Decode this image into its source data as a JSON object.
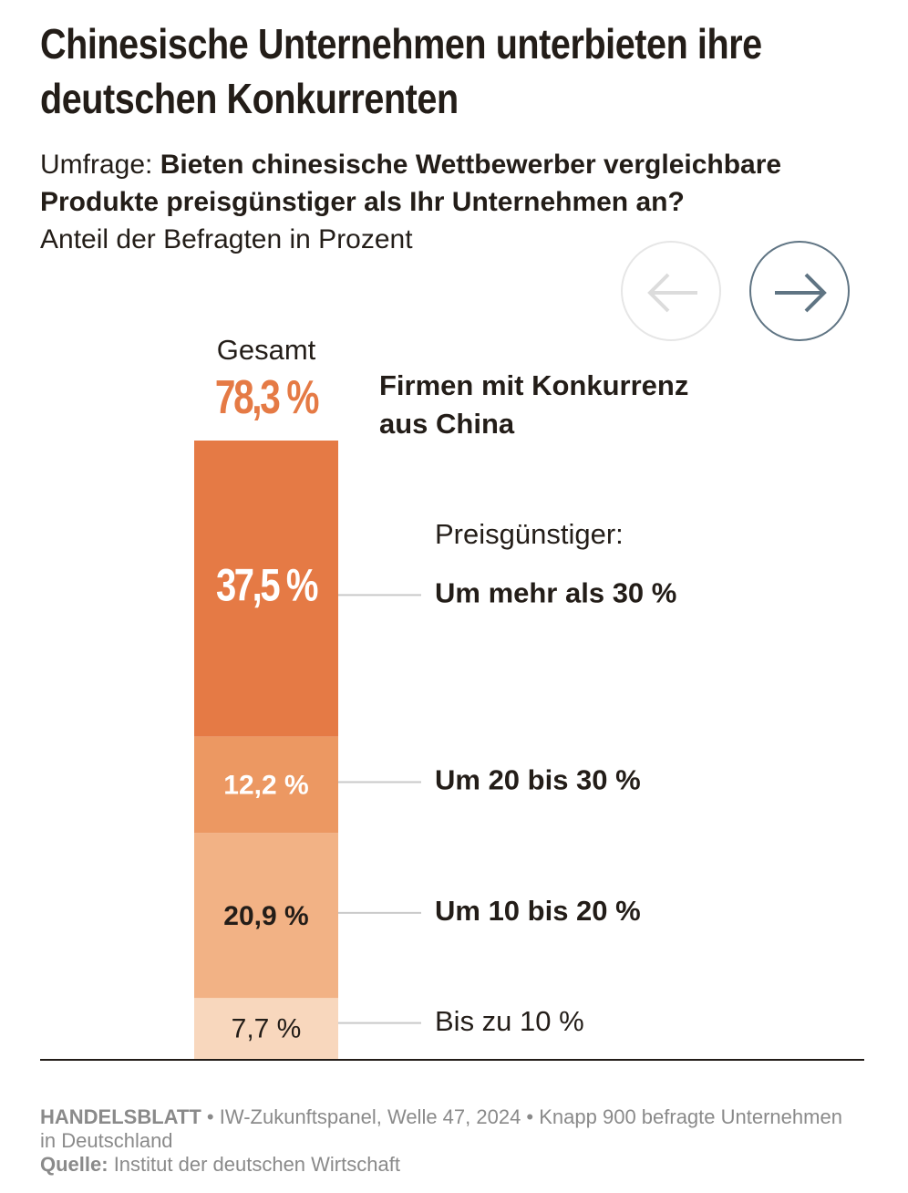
{
  "title": "Chinesische Unternehmen unterbieten ihre deutschen Konkurrenten",
  "subtitle_prefix": "Umfrage: ",
  "subtitle_question": "Bieten chinesische Wettbewerber vergleich­bare Produkte preisgünstiger als Ihr Unternehmen an?",
  "unit_label": "Anteil der Befragten in Prozent",
  "nav": {
    "prev_icon": "arrow-left-icon",
    "next_icon": "arrow-right-icon"
  },
  "total": {
    "label": "Gesamt",
    "value_text": "78,3 %"
  },
  "legend_title": "Firmen mit Konkurrenz aus China",
  "group_label": "Preisgünstiger:",
  "chart_data": {
    "type": "bar",
    "stacked": true,
    "categories": [
      "Gesamt"
    ],
    "total": 78.3,
    "series": [
      {
        "name": "Um mehr als 30 %",
        "value": 37.5,
        "value_label": "37,5 %",
        "color": "#e57a45",
        "label_color": "#ffffff",
        "label_bold": true
      },
      {
        "name": "Um 20 bis 30 %",
        "value": 12.2,
        "value_label": "12,2 %",
        "color": "#ec9862",
        "label_color": "#ffffff",
        "label_bold": true
      },
      {
        "name": "Um 10 bis 20 %",
        "value": 20.9,
        "value_label": "20,9 %",
        "color": "#f2b285",
        "label_color": "#231d18",
        "label_bold": true
      },
      {
        "name": "Bis zu 10 %",
        "value": 7.7,
        "value_label": "7,7 %",
        "color": "#f8d7bd",
        "label_color": "#231d18",
        "label_bold": false
      }
    ]
  },
  "footer": {
    "publisher": "HANDELSBLATT",
    "note": " • IW-Zukunftspanel, Welle 47, 2024 • Knapp 900 befragte Unternehmen in Deutschland",
    "source_label": "Quelle:",
    "source_text": " Institut der deutschen Wirtschaft"
  }
}
